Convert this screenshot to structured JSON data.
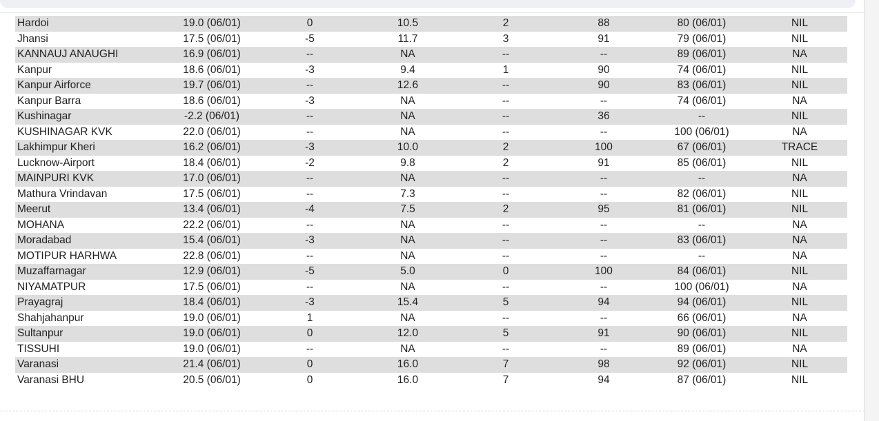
{
  "table": {
    "rows": [
      [
        "Hardoi",
        "19.0 (06/01)",
        "0",
        "10.5",
        "2",
        "88",
        "80 (06/01)",
        "NIL"
      ],
      [
        "Jhansi",
        "17.5 (06/01)",
        "-5",
        "11.7",
        "3",
        "91",
        "79 (06/01)",
        "NIL"
      ],
      [
        "KANNAUJ ANAUGHI",
        "16.9 (06/01)",
        "--",
        "NA",
        "--",
        "--",
        "89 (06/01)",
        "NA"
      ],
      [
        "Kanpur",
        "18.6 (06/01)",
        "-3",
        "9.4",
        "1",
        "90",
        "74 (06/01)",
        "NIL"
      ],
      [
        "Kanpur Airforce",
        "19.7 (06/01)",
        "--",
        "12.6",
        "--",
        "90",
        "83 (06/01)",
        "NIL"
      ],
      [
        "Kanpur Barra",
        "18.6 (06/01)",
        "-3",
        "NA",
        "--",
        "--",
        "74 (06/01)",
        "NA"
      ],
      [
        "Kushinagar",
        "-2.2 (06/01)",
        "--",
        "NA",
        "--",
        "36",
        "--",
        "NIL"
      ],
      [
        "KUSHINAGAR KVK",
        "22.0 (06/01)",
        "--",
        "NA",
        "--",
        "--",
        "100 (06/01)",
        "NA"
      ],
      [
        "Lakhimpur Kheri",
        "16.2 (06/01)",
        "-3",
        "10.0",
        "2",
        "100",
        "67 (06/01)",
        "TRACE"
      ],
      [
        "Lucknow-Airport",
        "18.4 (06/01)",
        "-2",
        "9.8",
        "2",
        "91",
        "85 (06/01)",
        "NIL"
      ],
      [
        "MAINPURI KVK",
        "17.0 (06/01)",
        "--",
        "NA",
        "--",
        "--",
        "--",
        "NA"
      ],
      [
        "Mathura Vrindavan",
        "17.5 (06/01)",
        "--",
        "7.3",
        "--",
        "--",
        "82 (06/01)",
        "NIL"
      ],
      [
        "Meerut",
        "13.4 (06/01)",
        "-4",
        "7.5",
        "2",
        "95",
        "81 (06/01)",
        "NIL"
      ],
      [
        "MOHANA",
        "22.2 (06/01)",
        "--",
        "NA",
        "--",
        "--",
        "--",
        "NA"
      ],
      [
        "Moradabad",
        "15.4 (06/01)",
        "-3",
        "NA",
        "--",
        "--",
        "83 (06/01)",
        "NA"
      ],
      [
        "MOTIPUR HARHWA",
        "22.8 (06/01)",
        "--",
        "NA",
        "--",
        "--",
        "--",
        "NA"
      ],
      [
        "Muzaffarnagar",
        "12.9 (06/01)",
        "-5",
        "5.0",
        "0",
        "100",
        "84 (06/01)",
        "NIL"
      ],
      [
        "NIYAMATPUR",
        "17.5 (06/01)",
        "--",
        "NA",
        "--",
        "--",
        "100 (06/01)",
        "NA"
      ],
      [
        "Prayagraj",
        "18.4 (06/01)",
        "-3",
        "15.4",
        "5",
        "94",
        "94 (06/01)",
        "NIL"
      ],
      [
        "Shahjahanpur",
        "19.0 (06/01)",
        "1",
        "NA",
        "--",
        "--",
        "66 (06/01)",
        "NA"
      ],
      [
        "Sultanpur",
        "19.0 (06/01)",
        "0",
        "12.0",
        "5",
        "91",
        "90 (06/01)",
        "NIL"
      ],
      [
        "TISSUHI",
        "19.0 (06/01)",
        "--",
        "NA",
        "--",
        "--",
        "89 (06/01)",
        "NA"
      ],
      [
        "Varanasi",
        "21.4 (06/01)",
        "0",
        "16.0",
        "7",
        "98",
        "92 (06/01)",
        "NIL"
      ],
      [
        "Varanasi BHU",
        "20.5 (06/01)",
        "0",
        "16.0",
        "7",
        "94",
        "87 (06/01)",
        "NIL"
      ]
    ]
  }
}
